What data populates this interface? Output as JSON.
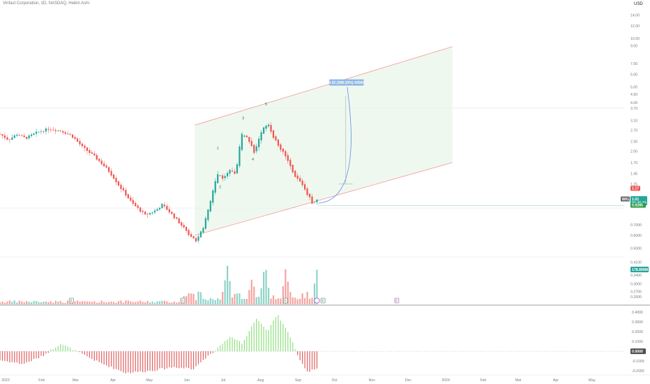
{
  "header": {
    "title": "Vinfast Corporation, 1D, NASDAQ, Heikin Ashi",
    "currency": "USD"
  },
  "colors": {
    "up": "#26a69a",
    "down": "#ef5350",
    "up_volume": "#8fd3c7",
    "down_volume": "#f4a3a0",
    "osc_up": "#8ee07e",
    "osc_down": "#e06060",
    "channel_fill": "#eaf6ea",
    "channel_line": "#f28b8b",
    "arc": "#5b8def",
    "ruler_bg": "#90b8e6"
  },
  "price_axis": {
    "labels": [
      "14.00",
      "12.00",
      "10.00",
      "9.00",
      "7.00",
      "6.00",
      "5.00",
      "4.50",
      "4.00",
      "3.70",
      "3.10",
      "2.70",
      "2.30",
      "2.00",
      "1.70",
      "1.45",
      "1.25",
      "1.00",
      "0.7000",
      "0.6000",
      "0.5000",
      "0.4100",
      "0.3400",
      "0.3000",
      "0.2700",
      "0.2500"
    ],
    "last_price_tag": "1.17",
    "symbol_tag": "WKLA",
    "symbol_price": "1.01",
    "countdown": "01:45:23",
    "low_tag": "0.9285",
    "volume_tag": "178.899M"
  },
  "ruler_label": "4.32 (398.33%) 43560",
  "waves": [
    "1",
    "2",
    "3",
    "4",
    "5"
  ],
  "oscillator_axis": {
    "labels": [
      "0.4000",
      "0.3000",
      "0.2000",
      "0.1000",
      "-0.1000",
      "-0.2000"
    ],
    "zero_tag": "0.0000"
  },
  "events": [
    "E",
    "E",
    "E",
    "E",
    "E"
  ],
  "time_axis": {
    "labels": [
      "2023",
      "Feb",
      "Mar",
      "Apr",
      "May",
      "Jun",
      "Jul",
      "Aug",
      "Sep",
      "Oct",
      "Nov",
      "Dec",
      "2024",
      "Feb",
      "Mar",
      "Apr",
      "May"
    ]
  },
  "chart_data": [
    {
      "type": "candlestick",
      "name": "Heikin Ashi price",
      "title": "Vinfast Corporation, 1D, NASDAQ, Heikin Ashi",
      "scale": "log",
      "ylim": [
        0.25,
        16
      ],
      "start": "2023-01-01",
      "end": "2024-05-31",
      "close_path": [
        [
          "2023-01-01",
          2.55
        ],
        [
          "2023-01-08",
          2.35
        ],
        [
          "2023-01-15",
          2.55
        ],
        [
          "2023-01-22",
          2.4
        ],
        [
          "2023-02-01",
          2.62
        ],
        [
          "2023-02-10",
          2.75
        ],
        [
          "2023-02-20",
          2.68
        ],
        [
          "2023-03-01",
          2.5
        ],
        [
          "2023-03-10",
          2.12
        ],
        [
          "2023-03-20",
          1.85
        ],
        [
          "2023-04-01",
          1.5
        ],
        [
          "2023-04-10",
          1.2
        ],
        [
          "2023-04-20",
          0.95
        ],
        [
          "2023-05-01",
          0.8
        ],
        [
          "2023-05-10",
          0.86
        ],
        [
          "2023-05-15",
          0.93
        ],
        [
          "2023-05-25",
          0.78
        ],
        [
          "2023-06-05",
          0.62
        ],
        [
          "2023-06-12",
          0.56
        ],
        [
          "2023-06-18",
          0.66
        ],
        [
          "2023-06-24",
          0.98
        ],
        [
          "2023-06-30",
          1.45
        ],
        [
          "2023-07-05",
          1.35
        ],
        [
          "2023-07-10",
          1.52
        ],
        [
          "2023-07-15",
          1.4
        ],
        [
          "2023-07-20",
          2.6
        ],
        [
          "2023-07-25",
          2.4
        ],
        [
          "2023-07-30",
          1.95
        ],
        [
          "2023-08-05",
          2.6
        ],
        [
          "2023-08-10",
          3.0
        ],
        [
          "2023-08-15",
          2.45
        ],
        [
          "2023-08-20",
          2.1
        ],
        [
          "2023-08-25",
          1.85
        ],
        [
          "2023-09-01",
          1.4
        ],
        [
          "2023-09-07",
          1.28
        ],
        [
          "2023-09-12",
          1.08
        ],
        [
          "2023-09-17",
          0.93
        ],
        [
          "2023-09-20",
          1.01
        ]
      ],
      "last_price": 1.01,
      "low_price": 0.9285,
      "high_price": 3.7
    },
    {
      "type": "bar",
      "name": "Volume",
      "last_value": "178.899M",
      "peaks": [
        [
          "2023-07-08",
          1.0
        ],
        [
          "2023-07-28",
          0.66
        ],
        [
          "2023-08-08",
          0.9
        ],
        [
          "2023-08-25",
          0.82
        ],
        [
          "2023-09-20",
          0.8
        ]
      ]
    },
    {
      "type": "bar",
      "name": "Oscillator",
      "ylim": [
        -0.22,
        0.45
      ],
      "path": [
        [
          "2023-01-01",
          -0.09
        ],
        [
          "2023-01-20",
          -0.13
        ],
        [
          "2023-02-05",
          -0.05
        ],
        [
          "2023-02-20",
          0.08
        ],
        [
          "2023-03-05",
          0.0
        ],
        [
          "2023-03-25",
          -0.12
        ],
        [
          "2023-04-15",
          -0.22
        ],
        [
          "2023-05-05",
          -0.2
        ],
        [
          "2023-05-25",
          -0.16
        ],
        [
          "2023-06-10",
          -0.18
        ],
        [
          "2023-06-25",
          -0.02
        ],
        [
          "2023-07-10",
          0.15
        ],
        [
          "2023-07-20",
          0.08
        ],
        [
          "2023-08-01",
          0.33
        ],
        [
          "2023-08-10",
          0.2
        ],
        [
          "2023-08-18",
          0.38
        ],
        [
          "2023-08-28",
          0.18
        ],
        [
          "2023-09-05",
          -0.08
        ],
        [
          "2023-09-12",
          -0.21
        ],
        [
          "2023-09-20",
          -0.18
        ]
      ]
    }
  ]
}
